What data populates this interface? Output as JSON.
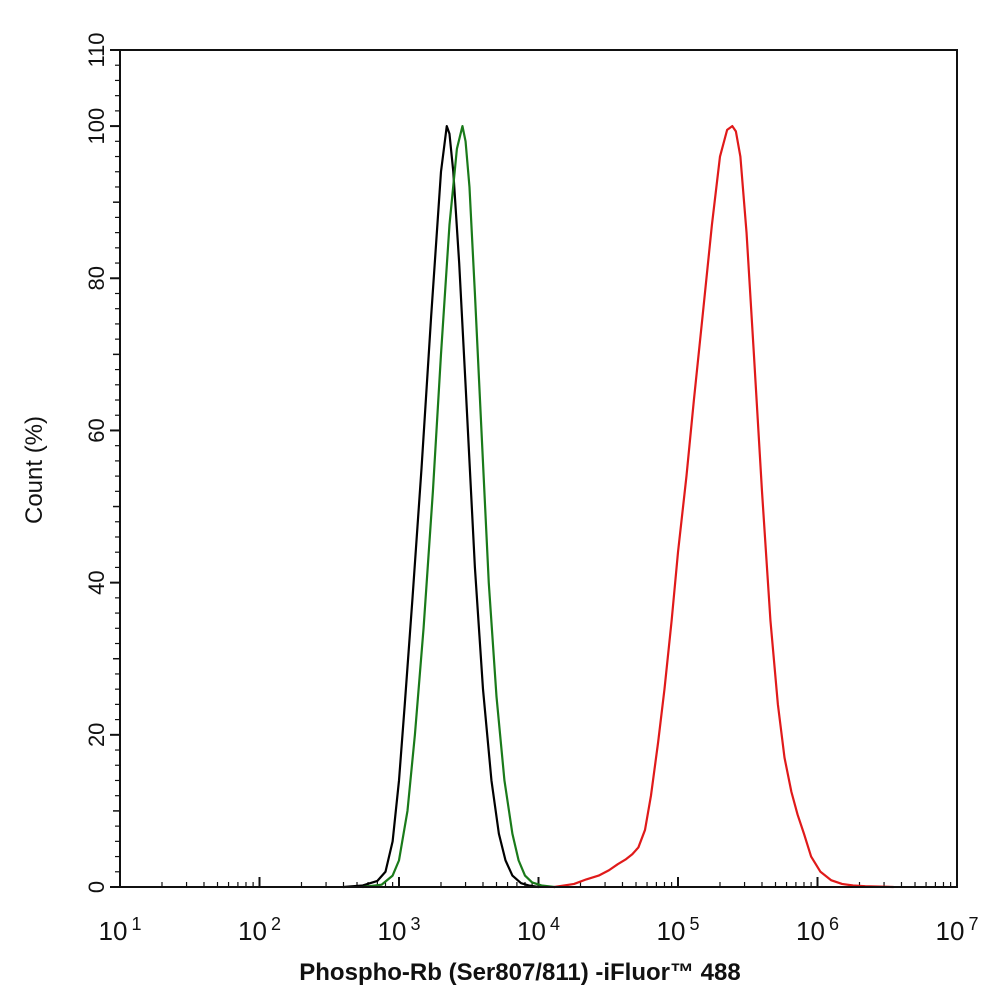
{
  "chart_data": {
    "type": "line",
    "xlabel": "Phospho-Rb (Ser807/811) -iFluor™ 488",
    "ylabel": "Count  (%)",
    "x_scale": "log",
    "xlim": [
      10,
      10000000
    ],
    "ylim": [
      0,
      110
    ],
    "x_ticks": [
      {
        "base": "10",
        "exp": "1"
      },
      {
        "base": "10",
        "exp": "2"
      },
      {
        "base": "10",
        "exp": "3"
      },
      {
        "base": "10",
        "exp": "4"
      },
      {
        "base": "10",
        "exp": "5"
      },
      {
        "base": "10",
        "exp": "6"
      },
      {
        "base": "10",
        "exp": "7"
      }
    ],
    "y_ticks": [
      "0",
      "20",
      "40",
      "60",
      "80",
      "100",
      "110"
    ],
    "y_tick_values": [
      0,
      20,
      40,
      60,
      80,
      100,
      110
    ],
    "grid": false,
    "legend": "none",
    "series": [
      {
        "color": "#000000",
        "x": [
          400,
          550,
          700,
          800,
          900,
          1000,
          1100,
          1250,
          1450,
          1700,
          2000,
          2200,
          2300,
          2450,
          2700,
          3000,
          3500,
          4000,
          4600,
          5200,
          5800,
          6500,
          7500,
          8500,
          10000
        ],
        "y": [
          0,
          0.2,
          0.8,
          2,
          6,
          14,
          24,
          38,
          55,
          75,
          94,
          100,
          99,
          94,
          82,
          66,
          42,
          26,
          14,
          7,
          3.5,
          1.5,
          0.5,
          0.2,
          0
        ]
      },
      {
        "color": "#1a7a1a",
        "x": [
          550,
          750,
          900,
          1000,
          1150,
          1300,
          1500,
          1750,
          2000,
          2300,
          2600,
          2850,
          3000,
          3200,
          3500,
          3900,
          4400,
          5000,
          5700,
          6500,
          7200,
          8000,
          9000,
          10500,
          13000
        ],
        "y": [
          0,
          0.3,
          1.5,
          3.5,
          10,
          20,
          34,
          52,
          70,
          87,
          97,
          100,
          98,
          92,
          78,
          60,
          40,
          25,
          14,
          7,
          3.5,
          1.5,
          0.6,
          0.2,
          0
        ]
      },
      {
        "color": "#e01a1a",
        "x": [
          13000,
          18000,
          22000,
          27000,
          32000,
          37000,
          42000,
          47000,
          52000,
          58000,
          64000,
          72000,
          80000,
          90000,
          100000,
          115000,
          130000,
          150000,
          175000,
          200000,
          225000,
          245000,
          260000,
          280000,
          310000,
          350000,
          400000,
          460000,
          520000,
          580000,
          650000,
          720000,
          800000,
          900000,
          1050000,
          1250000,
          1500000,
          1800000,
          2200000,
          2800000,
          3500000
        ],
        "y": [
          0,
          0.4,
          1,
          1.5,
          2.2,
          3,
          3.6,
          4.3,
          5.2,
          7.5,
          12,
          19,
          26,
          35,
          44,
          54,
          64,
          75,
          87,
          96,
          99.5,
          100,
          99.3,
          96,
          86,
          70,
          52,
          35,
          24,
          17,
          12.5,
          9.5,
          7,
          4,
          2,
          0.9,
          0.4,
          0.2,
          0.1,
          0.05,
          0
        ]
      }
    ]
  }
}
